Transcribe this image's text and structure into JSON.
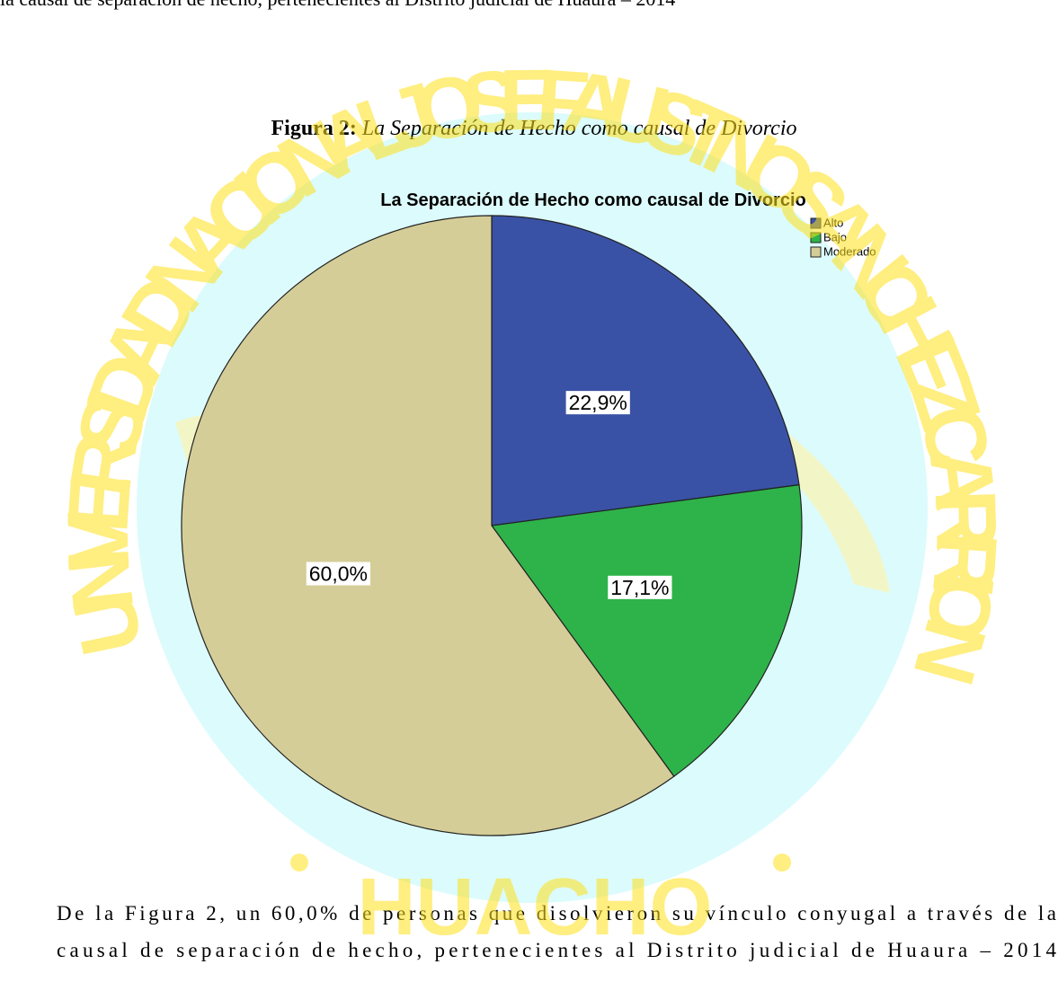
{
  "document": {
    "top_line": "la causal de separación de hecho, pertenecientes al Distrito judicial de Huaura – 2014",
    "figure_label": "Figura 2:",
    "figure_caption": "La Separación de Hecho como causal de Divorcio",
    "paragraph": [
      "De la Figura 2, un 60,0% de personas que disolvieron su vínculo conyugal a través de la",
      "causal de separación de hecho, pertenecientes al Distrito judicial de Huaura – 2014"
    ],
    "watermark": {
      "arc_text": "UNIVERSIDAD NACIONAL JOSE FAUSTINO SANCHEZ CARRION",
      "bottom_text": "HUACHO"
    }
  },
  "chart_data": {
    "type": "pie",
    "title": "La Separación de Hecho como causal de Divorcio",
    "categories": [
      "Alto",
      "Bajo",
      "Moderado"
    ],
    "values": [
      22.9,
      17.1,
      60.0
    ],
    "value_labels": [
      "22,9%",
      "17,1%",
      "60,0%"
    ],
    "colors": [
      "#3a52a5",
      "#2eb34a",
      "#d4cd98"
    ],
    "legend": "upper right"
  }
}
